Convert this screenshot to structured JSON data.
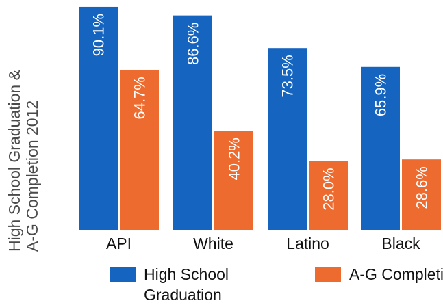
{
  "chart_data": {
    "type": "bar",
    "categories": [
      "API",
      "White",
      "Latino",
      "Black"
    ],
    "series": [
      {
        "name": "High School Graduation",
        "values": [
          90.1,
          86.6,
          73.5,
          65.9
        ],
        "labels": [
          "90.1%",
          "86.6%",
          "73.5%",
          "65.9%"
        ],
        "color": "#1565c0"
      },
      {
        "name": "A-G Completion",
        "values": [
          64.7,
          40.2,
          28.0,
          28.6
        ],
        "labels": [
          "64.7%",
          "40.2%",
          "28.0%",
          "28.6%"
        ],
        "color": "#ee6b2f"
      }
    ],
    "ylabel": "High School Graduation & A-G Completion 2012",
    "ylim": [
      0,
      100
    ],
    "legend": "bottom"
  },
  "ylabel_lines": [
    "High School Graduation &",
    "A-G Completion 2012"
  ],
  "legend": {
    "hs": "High School Graduation",
    "ag": "A-G Completion"
  }
}
